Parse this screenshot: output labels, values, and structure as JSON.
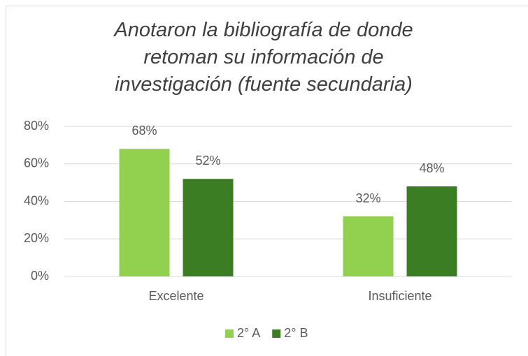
{
  "chart_data": {
    "type": "bar",
    "title": "Anotaron la bibliografía de donde retoman su información de investigación (fuente secundaria)",
    "categories": [
      "Excelente",
      "Insuficiente"
    ],
    "series": [
      {
        "name": "2° A",
        "color": "#92d050",
        "values": [
          68,
          32
        ],
        "value_labels": [
          "68%",
          "32%"
        ]
      },
      {
        "name": "2° B",
        "color": "#3a7d22",
        "values": [
          52,
          48
        ],
        "value_labels": [
          "52%",
          "48%"
        ]
      }
    ],
    "ylim": [
      0,
      80
    ],
    "yticks": [
      {
        "value": 0,
        "label": "0%"
      },
      {
        "value": 20,
        "label": "20%"
      },
      {
        "value": 40,
        "label": "40%"
      },
      {
        "value": 60,
        "label": "60%"
      },
      {
        "value": 80,
        "label": "80%"
      }
    ],
    "grid": true,
    "legend": "bottom"
  }
}
